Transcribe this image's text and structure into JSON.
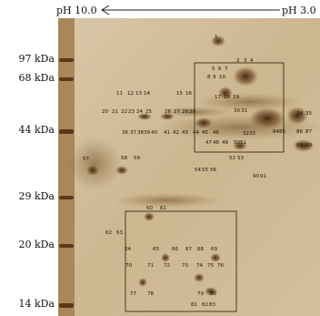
{
  "ph_axis": {
    "left_label": "pH 10.0",
    "right_label": "pH 3.0"
  },
  "mw_markers": [
    {
      "label": "97 kDa"
    },
    {
      "label": "68 kDa"
    },
    {
      "label": "44 kDa"
    },
    {
      "label": "29 kDa"
    },
    {
      "label": "20 kDa"
    },
    {
      "label": "14 kDa"
    }
  ],
  "spot_labels": [
    "1",
    "2",
    "3",
    "4",
    "5",
    "6",
    "7",
    "8",
    "9",
    "10",
    "11",
    "12",
    "13",
    "14",
    "15",
    "16",
    "17",
    "18",
    "19",
    "20",
    "21",
    "22",
    "23",
    "24",
    "25",
    "26",
    "27",
    "28",
    "29",
    "30",
    "31",
    "32",
    "33",
    "34",
    "35",
    "36",
    "37",
    "38",
    "39",
    "40",
    "41",
    "42",
    "43",
    "44",
    "45",
    "46",
    "47",
    "48",
    "49",
    "50",
    "51",
    "52",
    "53",
    "54",
    "55",
    "56",
    "57",
    "58",
    "59",
    "60",
    "61",
    "62",
    "63",
    "64",
    "65",
    "66",
    "67",
    "68",
    "69",
    "70",
    "71",
    "72",
    "73",
    "74",
    "75",
    "76",
    "77",
    "78",
    "79",
    "80",
    "81",
    "82",
    "83",
    "84",
    "85",
    "86",
    "87",
    "88",
    "89",
    "90",
    "91"
  ]
}
